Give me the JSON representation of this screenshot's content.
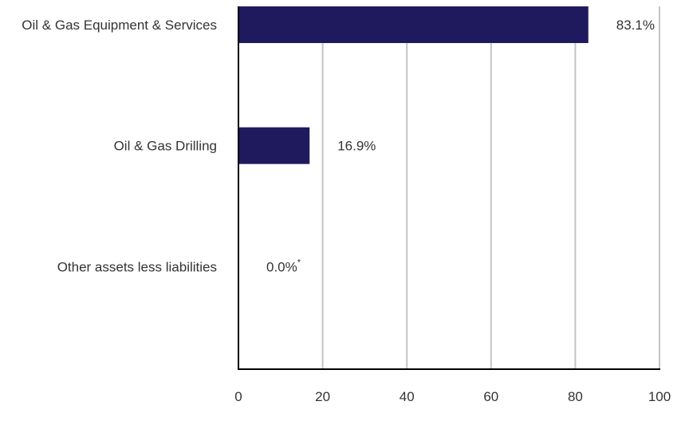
{
  "chart_data": {
    "type": "bar",
    "orientation": "horizontal",
    "categories": [
      "Oil & Gas Equipment & Services",
      "Oil & Gas Drilling",
      "Other assets less liabilities"
    ],
    "values": [
      83.1,
      16.9,
      0.0
    ],
    "value_labels": [
      "83.1%",
      "16.9%",
      "0.0%"
    ],
    "value_notes": [
      "",
      "",
      "*"
    ],
    "xlim": [
      0,
      100
    ],
    "xticks": [
      0,
      20,
      40,
      60,
      80,
      100
    ],
    "grid": true,
    "bar_color": "#1f1a5e",
    "grid_color": "#c4c4c4",
    "axis_color": "#000000"
  }
}
